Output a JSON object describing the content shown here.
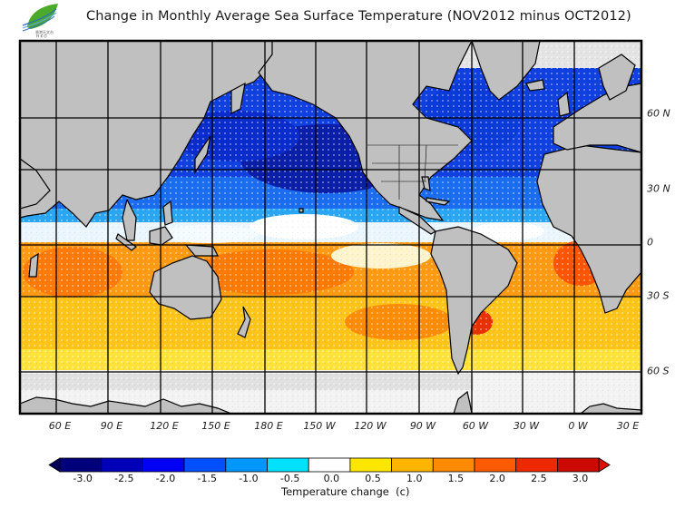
{
  "title": "Change in Monthly Average Sea Surface Temperature (NOV2012 minus OCT2012)",
  "logo": {
    "icon": "leaf-logo-icon",
    "caption_top": "香港天文台",
    "caption_bottom": "HKO"
  },
  "map": {
    "longitude_labels": [
      "60 E",
      "90 E",
      "120 E",
      "150 E",
      "180 E",
      "150 W",
      "120 W",
      "90 W",
      "60 W",
      "30 W",
      "0 W",
      "30 E"
    ],
    "latitude_labels": [
      "60 N",
      "30 N",
      "0",
      "30 S",
      "60 S"
    ],
    "land_color": "#c0c0c0",
    "no_data_color": "#e4e4e4"
  },
  "legend": {
    "title": "Temperature change  (c)",
    "ticks": [
      "-3.0",
      "-2.5",
      "-2.0",
      "-1.5",
      "-1.0",
      "-0.5",
      "0.0",
      "0.5",
      "1.0",
      "1.5",
      "2.0",
      "2.5",
      "3.0"
    ],
    "colors": [
      "#00007a",
      "#0000b8",
      "#0000f5",
      "#0050ff",
      "#0096ff",
      "#00e0ff",
      "#ffffff",
      "#ffe600",
      "#ffb400",
      "#ff8a00",
      "#ff5a00",
      "#ee2800",
      "#cc0a00"
    ],
    "under_color": "#00005a",
    "over_color": "#dd1000"
  }
}
